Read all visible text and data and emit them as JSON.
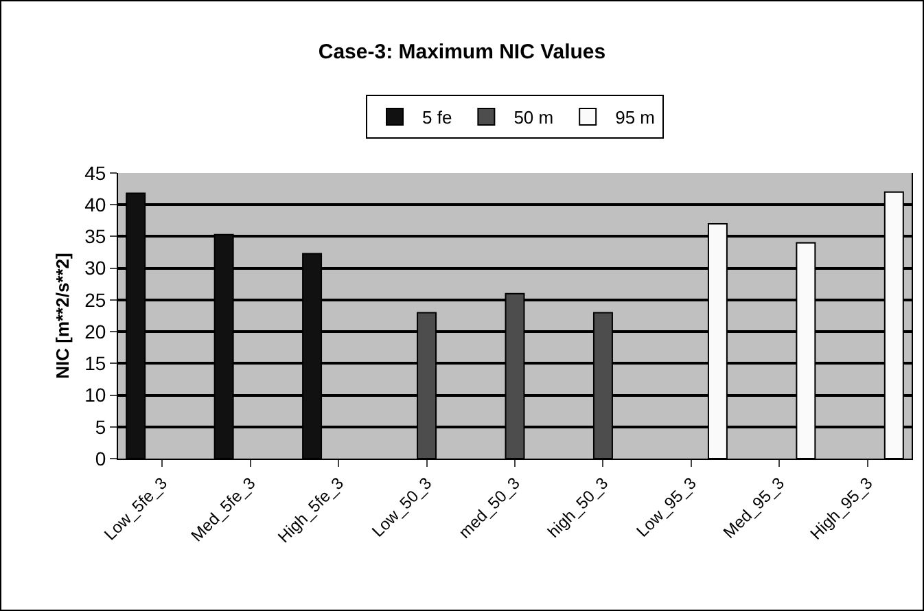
{
  "chart_data": {
    "type": "bar",
    "title": "Case-3: Maximum NIC Values",
    "ylabel": "NIC [m**2/s**2]",
    "categories": [
      "Low_5fe_3",
      "Med_5fe_3",
      "High_5fe_3",
      "Low_50_3",
      "med_50_3",
      "high_50_3",
      "Low_95_3",
      "Med_95_3",
      "High_95_3"
    ],
    "series": [
      {
        "name": "5 fe",
        "color": "#111111",
        "values": [
          41.8,
          35.3,
          32.3,
          null,
          null,
          null,
          null,
          null,
          null
        ]
      },
      {
        "name": "50 m",
        "color": "#4d4d4d",
        "values": [
          null,
          null,
          null,
          23,
          26,
          23,
          null,
          null,
          null
        ]
      },
      {
        "name": "95 m",
        "color": "#fafafa",
        "values": [
          null,
          null,
          null,
          null,
          null,
          null,
          37,
          34,
          42
        ]
      }
    ],
    "ylim": [
      0,
      45
    ],
    "yticks": [
      0,
      5,
      10,
      15,
      20,
      25,
      30,
      35,
      40,
      45
    ],
    "grid": "y",
    "legend": "top"
  }
}
